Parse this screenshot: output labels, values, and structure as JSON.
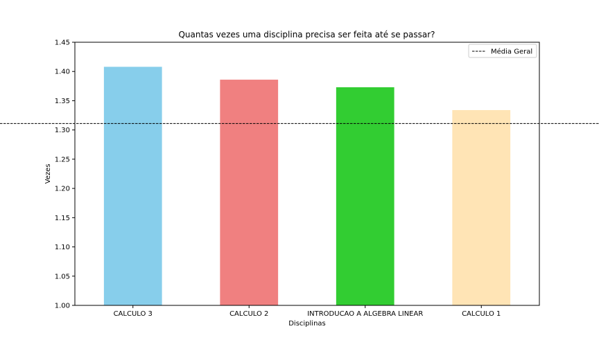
{
  "chart_data": {
    "type": "bar",
    "title": "Quantas vezes uma disciplina precisa ser feita até se passar?",
    "xlabel": "Disciplinas",
    "ylabel": "Vezes",
    "categories": [
      "CALCULO 3",
      "CALCULO 2",
      "INTRODUCAO A ALGEBRA LINEAR",
      "CALCULO 1"
    ],
    "values": [
      1.408,
      1.386,
      1.373,
      1.334
    ],
    "colors": [
      "#87ceeb",
      "#f08080",
      "#32cd32",
      "#ffe4b5"
    ],
    "ylim": [
      1.0,
      1.45
    ],
    "yticks": [
      1.0,
      1.05,
      1.1,
      1.15,
      1.2,
      1.25,
      1.3,
      1.35,
      1.4,
      1.45
    ],
    "ytick_labels": [
      "1.00",
      "1.05",
      "1.10",
      "1.15",
      "1.20",
      "1.25",
      "1.30",
      "1.35",
      "1.40",
      "1.45"
    ],
    "reference_line": {
      "label": "Média Geral",
      "value": 1.311,
      "style": "dashed",
      "color": "#000000"
    },
    "legend": {
      "position": "top-right",
      "entries": [
        "Média Geral"
      ]
    },
    "grid": false
  }
}
